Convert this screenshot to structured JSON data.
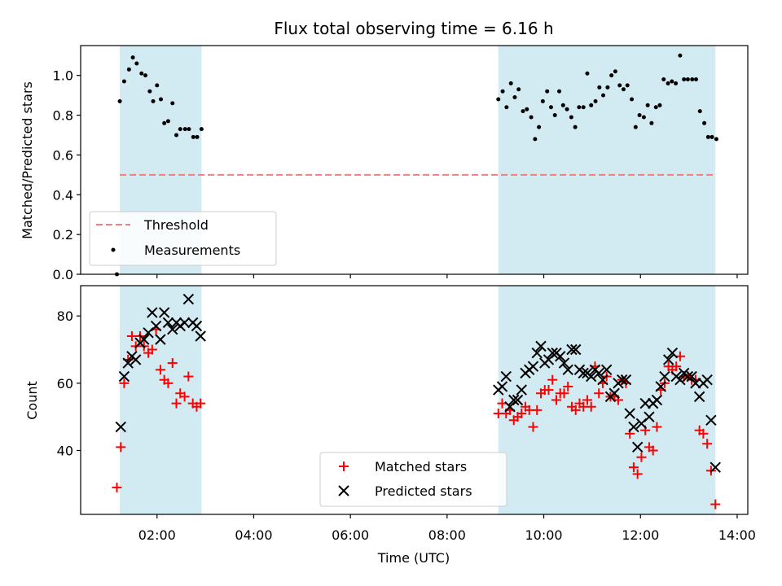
{
  "chart_data": {
    "type": "scatter",
    "title": "Flux total observing time = 6.16 h",
    "xlabel": "Time (UTC)",
    "x_ticks": [
      "02:00",
      "04:00",
      "06:00",
      "08:00",
      "10:00",
      "12:00",
      "14:00"
    ],
    "x_tick_hours": [
      2,
      4,
      6,
      8,
      10,
      12,
      14
    ],
    "xlim_hours": [
      0.42,
      14.22
    ],
    "shaded_intervals_hours": [
      [
        1.23,
        2.92
      ],
      [
        9.06,
        13.55
      ]
    ],
    "shade_color": "#add8e6",
    "top": {
      "ylabel": "Matched/Predicted stars",
      "ylim": [
        0,
        1.15
      ],
      "y_ticks": [
        "0.0",
        "0.2",
        "0.4",
        "0.6",
        "0.8",
        "1.0"
      ],
      "y_tick_values": [
        0,
        0.2,
        0.4,
        0.6,
        0.8,
        1.0
      ],
      "threshold": {
        "name": "Threshold",
        "value": 0.5,
        "x_range_hours": [
          1.23,
          13.55
        ],
        "color": "#f08080"
      },
      "measurements": {
        "name": "Measurements",
        "color": "#000000",
        "points": [
          [
            1.17,
            0.0
          ],
          [
            1.23,
            0.87
          ],
          [
            1.32,
            0.97
          ],
          [
            1.42,
            1.03
          ],
          [
            1.5,
            1.09
          ],
          [
            1.58,
            1.06
          ],
          [
            1.68,
            1.01
          ],
          [
            1.76,
            1.0
          ],
          [
            1.85,
            0.92
          ],
          [
            1.92,
            0.87
          ],
          [
            2.0,
            0.95
          ],
          [
            2.08,
            0.88
          ],
          [
            2.15,
            0.76
          ],
          [
            2.23,
            0.77
          ],
          [
            2.32,
            0.86
          ],
          [
            2.4,
            0.7
          ],
          [
            2.48,
            0.73
          ],
          [
            2.58,
            0.73
          ],
          [
            2.66,
            0.73
          ],
          [
            2.75,
            0.69
          ],
          [
            2.83,
            0.69
          ],
          [
            2.92,
            0.73
          ],
          [
            9.06,
            0.88
          ],
          [
            9.15,
            0.92
          ],
          [
            9.23,
            0.84
          ],
          [
            9.32,
            0.96
          ],
          [
            9.4,
            0.89
          ],
          [
            9.48,
            0.93
          ],
          [
            9.57,
            0.82
          ],
          [
            9.65,
            0.83
          ],
          [
            9.74,
            0.79
          ],
          [
            9.82,
            0.68
          ],
          [
            9.9,
            0.74
          ],
          [
            9.98,
            0.87
          ],
          [
            10.07,
            0.92
          ],
          [
            10.15,
            0.84
          ],
          [
            10.23,
            0.8
          ],
          [
            10.32,
            0.92
          ],
          [
            10.4,
            0.85
          ],
          [
            10.48,
            0.83
          ],
          [
            10.57,
            0.79
          ],
          [
            10.65,
            0.74
          ],
          [
            10.73,
            0.84
          ],
          [
            10.82,
            0.84
          ],
          [
            10.9,
            1.01
          ],
          [
            10.98,
            0.85
          ],
          [
            11.07,
            0.87
          ],
          [
            11.15,
            0.94
          ],
          [
            11.23,
            0.9
          ],
          [
            11.32,
            0.94
          ],
          [
            11.4,
            1.0
          ],
          [
            11.48,
            1.02
          ],
          [
            11.57,
            0.95
          ],
          [
            11.65,
            0.93
          ],
          [
            11.73,
            0.95
          ],
          [
            11.82,
            0.88
          ],
          [
            11.9,
            0.74
          ],
          [
            11.98,
            0.8
          ],
          [
            12.07,
            0.79
          ],
          [
            12.15,
            0.85
          ],
          [
            12.23,
            0.76
          ],
          [
            12.32,
            0.84
          ],
          [
            12.4,
            0.85
          ],
          [
            12.48,
            0.98
          ],
          [
            12.57,
            0.96
          ],
          [
            12.65,
            0.97
          ],
          [
            12.73,
            0.96
          ],
          [
            12.82,
            1.1
          ],
          [
            12.9,
            0.98
          ],
          [
            12.98,
            0.98
          ],
          [
            13.07,
            0.98
          ],
          [
            13.15,
            0.98
          ],
          [
            13.23,
            0.82
          ],
          [
            13.32,
            0.76
          ],
          [
            13.4,
            0.69
          ],
          [
            13.48,
            0.69
          ],
          [
            13.57,
            0.68
          ]
        ]
      },
      "legend": {
        "position": "lower left",
        "entries": [
          "Threshold",
          "Measurements"
        ]
      }
    },
    "bottom": {
      "ylabel": "Count",
      "ylim": [
        21,
        89
      ],
      "y_ticks": [
        "40",
        "60",
        "80"
      ],
      "y_tick_values": [
        40,
        60,
        80
      ],
      "series": [
        {
          "name": "Matched stars",
          "marker": "+",
          "color": "#ff0000",
          "points": [
            [
              1.17,
              29
            ],
            [
              1.25,
              41
            ],
            [
              1.32,
              60
            ],
            [
              1.4,
              67
            ],
            [
              1.48,
              74
            ],
            [
              1.56,
              71
            ],
            [
              1.65,
              74
            ],
            [
              1.73,
              71
            ],
            [
              1.82,
              69
            ],
            [
              1.9,
              70
            ],
            [
              1.98,
              76
            ],
            [
              2.07,
              64
            ],
            [
              2.15,
              61
            ],
            [
              2.23,
              60
            ],
            [
              2.32,
              66
            ],
            [
              2.4,
              54
            ],
            [
              2.48,
              57
            ],
            [
              2.57,
              56
            ],
            [
              2.65,
              62
            ],
            [
              2.74,
              54
            ],
            [
              2.82,
              53
            ],
            [
              2.9,
              54
            ],
            [
              9.06,
              51
            ],
            [
              9.14,
              54
            ],
            [
              9.22,
              51
            ],
            [
              9.3,
              52
            ],
            [
              9.38,
              49
            ],
            [
              9.46,
              50
            ],
            [
              9.54,
              51
            ],
            [
              9.62,
              53
            ],
            [
              9.7,
              52
            ],
            [
              9.78,
              47
            ],
            [
              9.86,
              52
            ],
            [
              9.94,
              57
            ],
            [
              10.02,
              58
            ],
            [
              10.1,
              58
            ],
            [
              10.18,
              61
            ],
            [
              10.26,
              55
            ],
            [
              10.34,
              57
            ],
            [
              10.42,
              57
            ],
            [
              10.5,
              59
            ],
            [
              10.58,
              53
            ],
            [
              10.66,
              52
            ],
            [
              10.74,
              54
            ],
            [
              10.82,
              53
            ],
            [
              10.9,
              55
            ],
            [
              10.98,
              53
            ],
            [
              11.06,
              65
            ],
            [
              11.14,
              57
            ],
            [
              11.22,
              60
            ],
            [
              11.3,
              62
            ],
            [
              11.38,
              56
            ],
            [
              11.46,
              56
            ],
            [
              11.54,
              55
            ],
            [
              11.62,
              61
            ],
            [
              11.7,
              60
            ],
            [
              11.78,
              45
            ],
            [
              11.86,
              35
            ],
            [
              11.94,
              33
            ],
            [
              12.02,
              38
            ],
            [
              12.1,
              46
            ],
            [
              12.18,
              41
            ],
            [
              12.26,
              40
            ],
            [
              12.34,
              47
            ],
            [
              12.42,
              58
            ],
            [
              12.5,
              60
            ],
            [
              12.58,
              65
            ],
            [
              12.66,
              64
            ],
            [
              12.74,
              65
            ],
            [
              12.82,
              68
            ],
            [
              12.9,
              62
            ],
            [
              12.98,
              62
            ],
            [
              13.06,
              61
            ],
            [
              13.14,
              61
            ],
            [
              13.22,
              46
            ],
            [
              13.3,
              45
            ],
            [
              13.38,
              42
            ],
            [
              13.46,
              34
            ],
            [
              13.55,
              24
            ]
          ]
        },
        {
          "name": "Predicted stars",
          "marker": "x",
          "color": "#000000",
          "points": [
            [
              1.25,
              47
            ],
            [
              1.32,
              62
            ],
            [
              1.4,
              66
            ],
            [
              1.48,
              68
            ],
            [
              1.56,
              67
            ],
            [
              1.65,
              72
            ],
            [
              1.73,
              73
            ],
            [
              1.82,
              75
            ],
            [
              1.9,
              81
            ],
            [
              1.98,
              77
            ],
            [
              2.07,
              73
            ],
            [
              2.15,
              81
            ],
            [
              2.23,
              78
            ],
            [
              2.32,
              76
            ],
            [
              2.4,
              78
            ],
            [
              2.48,
              77
            ],
            [
              2.57,
              78
            ],
            [
              2.65,
              85
            ],
            [
              2.74,
              78
            ],
            [
              2.82,
              77
            ],
            [
              2.9,
              74
            ],
            [
              9.06,
              58
            ],
            [
              9.14,
              59
            ],
            [
              9.22,
              62
            ],
            [
              9.3,
              53
            ],
            [
              9.38,
              55
            ],
            [
              9.46,
              55
            ],
            [
              9.54,
              58
            ],
            [
              9.62,
              63
            ],
            [
              9.7,
              64
            ],
            [
              9.78,
              65
            ],
            [
              9.86,
              69
            ],
            [
              9.94,
              71
            ],
            [
              10.02,
              66
            ],
            [
              10.1,
              67
            ],
            [
              10.18,
              69
            ],
            [
              10.26,
              69
            ],
            [
              10.34,
              68
            ],
            [
              10.42,
              66
            ],
            [
              10.5,
              64
            ],
            [
              10.58,
              70
            ],
            [
              10.66,
              70
            ],
            [
              10.74,
              64
            ],
            [
              10.82,
              63
            ],
            [
              10.9,
              63
            ],
            [
              10.98,
              62
            ],
            [
              11.06,
              64
            ],
            [
              11.14,
              63
            ],
            [
              11.22,
              61
            ],
            [
              11.3,
              64
            ],
            [
              11.38,
              56
            ],
            [
              11.46,
              57
            ],
            [
              11.54,
              60
            ],
            [
              11.62,
              61
            ],
            [
              11.7,
              61
            ],
            [
              11.78,
              51
            ],
            [
              11.86,
              47
            ],
            [
              11.94,
              41
            ],
            [
              12.02,
              48
            ],
            [
              12.1,
              54
            ],
            [
              12.18,
              50
            ],
            [
              12.26,
              54
            ],
            [
              12.34,
              55
            ],
            [
              12.42,
              59
            ],
            [
              12.5,
              62
            ],
            [
              12.58,
              67
            ],
            [
              12.66,
              69
            ],
            [
              12.74,
              62
            ],
            [
              12.82,
              61
            ],
            [
              12.9,
              63
            ],
            [
              12.98,
              62
            ],
            [
              13.06,
              62
            ],
            [
              13.14,
              60
            ],
            [
              13.22,
              56
            ],
            [
              13.3,
              60
            ],
            [
              13.38,
              61
            ],
            [
              13.46,
              49
            ],
            [
              13.55,
              35
            ]
          ]
        }
      ],
      "legend": {
        "position": "lower center",
        "entries": [
          "Matched stars",
          "Predicted stars"
        ]
      }
    }
  }
}
